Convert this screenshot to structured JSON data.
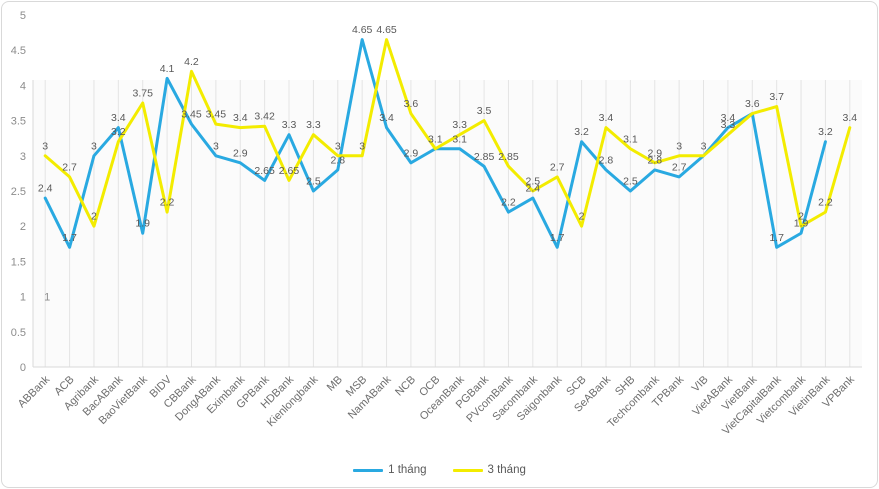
{
  "chart_data": {
    "type": "line",
    "title": "",
    "categories": [
      "ABBank",
      "ACB",
      "Agribank",
      "BacABank",
      "BaoVietBank",
      "BIDV",
      "CBBank",
      "DongABank",
      "Eximbank",
      "GPBank",
      "HDBank",
      "Kienlongbank",
      "MB",
      "MSB",
      "NamABank",
      "NCB",
      "OCB",
      "OceanBank",
      "PGBank",
      "PVcomBank",
      "Sacombank",
      "Saigonbank",
      "SCB",
      "SeABank",
      "SHB",
      "Techcombank",
      "TPBank",
      "VIB",
      "VietABank",
      "VietBank",
      "VietCapitalBank",
      "Vietcombank",
      "VietinBank",
      "VPBank"
    ],
    "series": [
      {
        "name": "1 tháng",
        "color": "#29a9e1",
        "values": [
          2.4,
          1.7,
          3,
          3.4,
          1.9,
          4.1,
          3.45,
          3,
          2.9,
          2.65,
          3.3,
          2.5,
          2.8,
          4.65,
          3.4,
          2.9,
          3.1,
          3.1,
          2.85,
          2.2,
          2.4,
          1.7,
          3.2,
          2.8,
          2.5,
          2.8,
          2.7,
          3,
          3.4,
          3.6,
          1.7,
          1.9,
          3.2,
          null
        ]
      },
      {
        "name": "3 tháng",
        "color": "#f3ec00",
        "values": [
          3,
          2.7,
          2,
          3.2,
          3.75,
          2.2,
          4.2,
          3.45,
          3.4,
          3.42,
          2.65,
          3.3,
          3,
          3,
          4.65,
          3.6,
          3.1,
          3.3,
          3.5,
          2.85,
          2.5,
          2.7,
          2,
          3.4,
          3.1,
          2.9,
          3,
          3,
          3.3,
          3.6,
          3.7,
          2,
          2.2,
          3.4
        ]
      }
    ],
    "y_axis": {
      "min": 0,
      "max": 5,
      "step": 0.5,
      "ticks": [
        "0",
        "0.5",
        "1",
        "1.5",
        "2",
        "2.5",
        "3",
        "3.5",
        "4",
        "4.5",
        "5"
      ]
    },
    "legend": {
      "position": "bottom",
      "entries": [
        "1 tháng",
        "3 tháng"
      ]
    },
    "annotations": [
      {
        "text": "1",
        "category": "ABBank",
        "value": 1
      }
    ],
    "data_labels": true,
    "gridlines": "vertical",
    "colors": {
      "label_text": "#595959",
      "axis_text": "#8c8c8c",
      "category_text": "#6e6e6e",
      "gridline": "#e4e4e4",
      "axis_line": "#d9d9d9",
      "plot_fill": "#fbfbfb"
    }
  }
}
